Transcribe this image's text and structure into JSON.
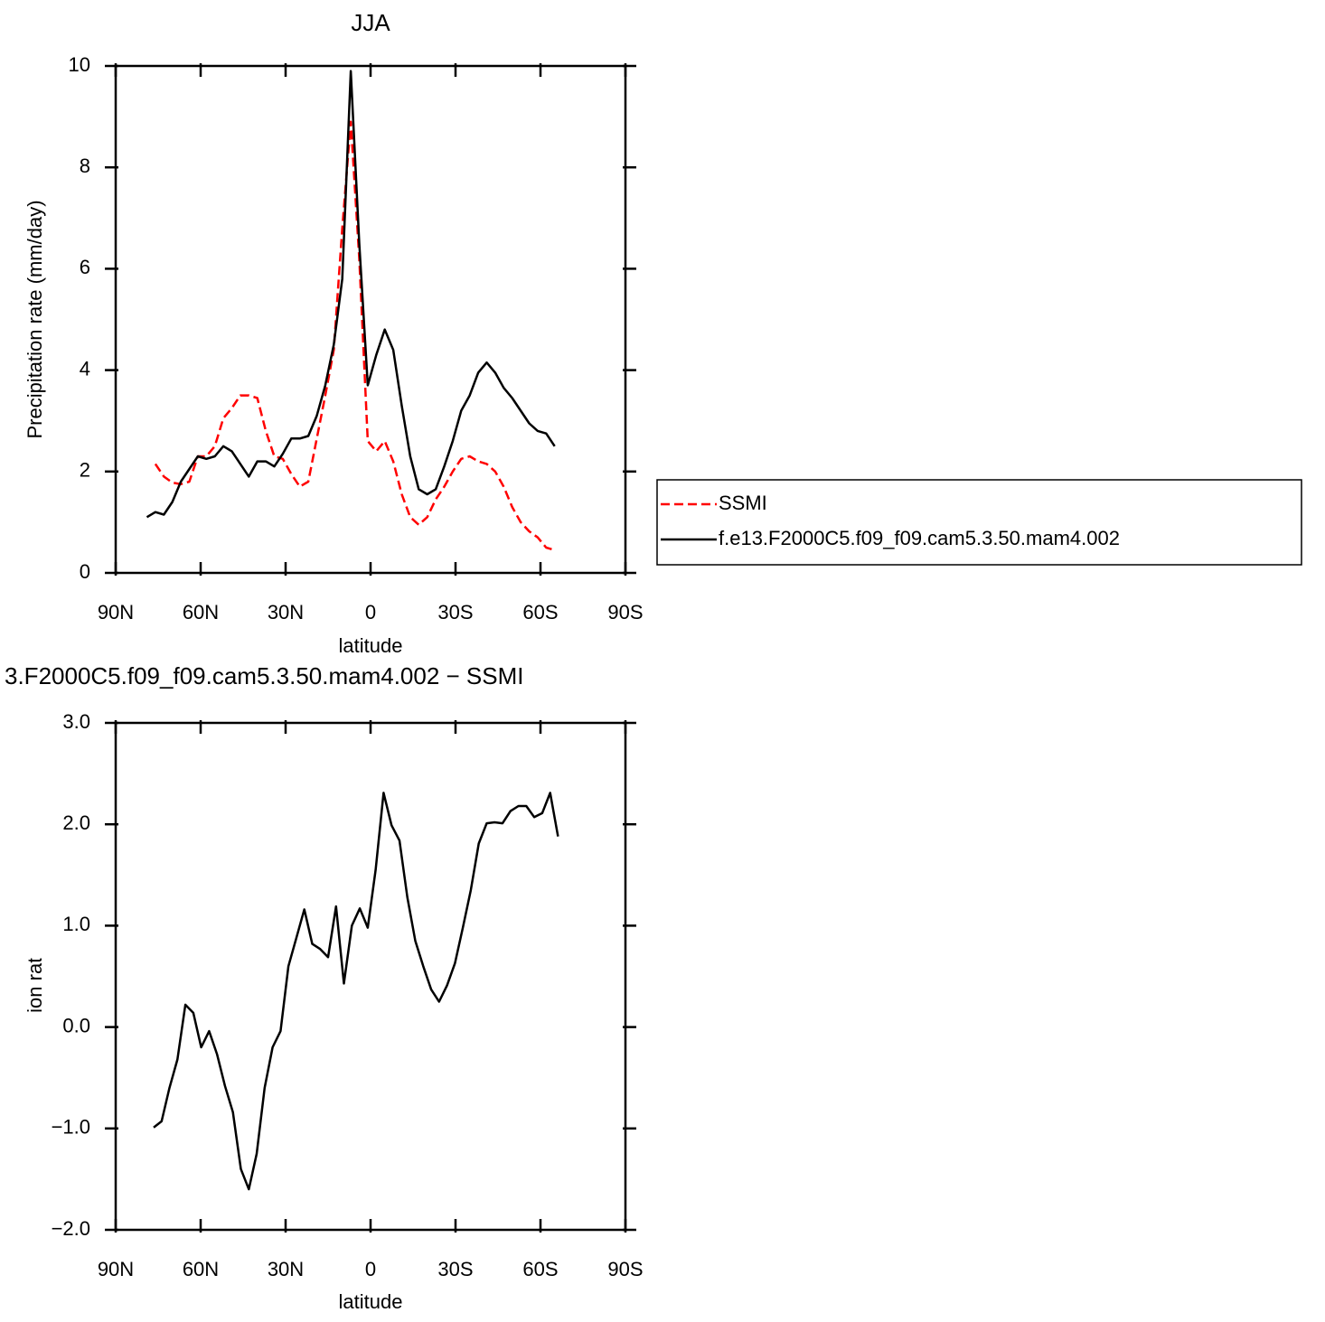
{
  "chart_data": [
    {
      "type": "line",
      "title": "JJA",
      "xlabel": "latitude",
      "ylabel": "Precipitation rate (mm/day)",
      "x": [
        79,
        76,
        73,
        70,
        67,
        64,
        61,
        58,
        55,
        52,
        49,
        46,
        43,
        40,
        37,
        34,
        31,
        28,
        25,
        22,
        19,
        16,
        13,
        10,
        7,
        4,
        1,
        -2,
        -5,
        -8,
        -11,
        -14,
        -17,
        -20,
        -23,
        -26,
        -29,
        -32,
        -35,
        -38,
        -41,
        -44,
        -47,
        -50,
        -53,
        -56,
        -59,
        -62,
        -65
      ],
      "series": [
        {
          "name": "SSMI",
          "color": "#ff0000",
          "dashed": true,
          "values": [
            null,
            2.15,
            1.9,
            1.78,
            1.75,
            1.8,
            2.3,
            2.3,
            2.5,
            3.05,
            3.25,
            3.5,
            3.5,
            3.45,
            2.8,
            2.3,
            2.25,
            1.95,
            1.7,
            1.8,
            2.65,
            3.5,
            4.4,
            6.8,
            8.9,
            6.2,
            2.6,
            2.4,
            2.6,
            2.2,
            1.55,
            1.1,
            0.95,
            1.1,
            1.45,
            1.7,
            2.0,
            2.25,
            2.3,
            2.2,
            2.15,
            2.0,
            1.7,
            1.3,
            1.0,
            0.82,
            0.7,
            0.5,
            0.45
          ]
        },
        {
          "name": "f.e13.F2000C5.f09_f09.cam5.3.50.mam4.002",
          "color": "#000000",
          "dashed": false,
          "values": [
            1.1,
            1.2,
            1.15,
            1.4,
            1.8,
            2.05,
            2.3,
            2.25,
            2.3,
            2.5,
            2.4,
            2.15,
            1.9,
            2.2,
            2.2,
            2.1,
            2.35,
            2.65,
            2.65,
            2.7,
            3.1,
            3.7,
            4.5,
            5.8,
            9.9,
            6.5,
            3.7,
            4.3,
            4.8,
            4.4,
            3.3,
            2.3,
            1.65,
            1.55,
            1.65,
            2.1,
            2.6,
            3.2,
            3.5,
            3.95,
            4.15,
            3.95,
            3.65,
            3.45,
            3.2,
            2.95,
            2.8,
            2.75,
            2.5
          ]
        }
      ],
      "xlim": [
        90,
        -90
      ],
      "xticks": [
        {
          "value": 90,
          "label": "90N"
        },
        {
          "value": 60,
          "label": "60N"
        },
        {
          "value": 30,
          "label": "30N"
        },
        0,
        {
          "value": -30,
          "label": "30S"
        },
        {
          "value": -60,
          "label": "60S"
        },
        {
          "value": -90,
          "label": "90S"
        }
      ],
      "ylim": [
        0,
        10
      ],
      "yticks": [
        0,
        2,
        4,
        6,
        8,
        10
      ],
      "grid": false,
      "legend": "right"
    },
    {
      "type": "line",
      "title": "3.F2000C5.f09_f09.cam5.3.50.mam4.002 − SSMI",
      "xlabel": "latitude",
      "ylabel": "Precipitation rate (mm/day)",
      "x": [
        76.6,
        73.8,
        71.0,
        68.2,
        65.4,
        62.6,
        59.8,
        57.0,
        54.2,
        51.4,
        48.6,
        45.8,
        43.0,
        40.2,
        37.4,
        34.6,
        31.8,
        29.0,
        26.2,
        23.4,
        20.6,
        17.8,
        15.0,
        12.2,
        9.4,
        6.6,
        3.8,
        1.0,
        -1.8,
        -4.6,
        -7.4,
        -10.2,
        -13.0,
        -15.8,
        -18.6,
        -21.4,
        -24.2,
        -27.0,
        -29.8,
        -32.6,
        -35.4,
        -38.2,
        -41.0,
        -43.8,
        -46.6,
        -49.4,
        -52.2,
        -55.0,
        -57.8,
        -60.6,
        -63.4,
        -66.2
      ],
      "series": [
        {
          "color": "#000000",
          "dashed": false,
          "values": [
            -0.99,
            -0.93,
            -0.6,
            -0.32,
            0.22,
            0.14,
            -0.2,
            -0.04,
            -0.27,
            -0.58,
            -0.84,
            -1.4,
            -1.6,
            -1.25,
            -0.6,
            -0.2,
            -0.04,
            0.6,
            0.88,
            1.16,
            0.82,
            0.77,
            0.69,
            1.19,
            0.43,
            1.0,
            1.17,
            0.98,
            1.55,
            2.31,
            1.99,
            1.84,
            1.28,
            0.85,
            0.6,
            0.37,
            0.25,
            0.41,
            0.63,
            0.98,
            1.35,
            1.81,
            2.01,
            2.02,
            2.01,
            2.13,
            2.18,
            2.18,
            2.07,
            2.11,
            2.31,
            1.88
          ]
        }
      ],
      "xlim": [
        90,
        -90
      ],
      "xticks": [
        {
          "value": 90,
          "label": "90N"
        },
        {
          "value": 60,
          "label": "60N"
        },
        {
          "value": 30,
          "label": "30N"
        },
        0,
        {
          "value": -30,
          "label": "30S"
        },
        {
          "value": -60,
          "label": "60S"
        },
        {
          "value": -90,
          "label": "90S"
        }
      ],
      "ylim": [
        -2,
        3
      ],
      "yticks": [
        {
          "value": -2,
          "label": "−2.0"
        },
        {
          "value": -1,
          "label": "−1.0"
        },
        {
          "value": 0,
          "label": "0.0"
        },
        {
          "value": 1,
          "label": "1.0"
        },
        {
          "value": 2,
          "label": "2.0"
        },
        {
          "value": 3,
          "label": "3.0"
        }
      ],
      "grid": false
    }
  ]
}
